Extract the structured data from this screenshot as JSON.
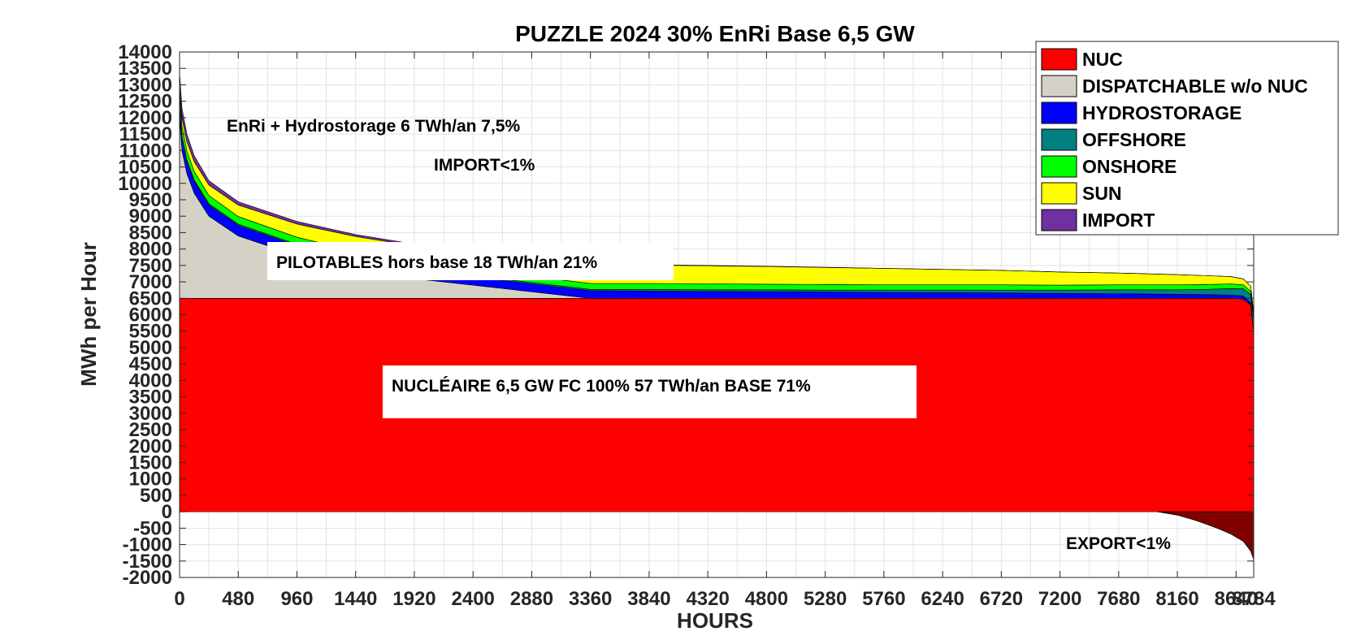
{
  "chart_data": {
    "type": "area",
    "title": "PUZZLE 2024 30% EnRi Base 6,5 GW",
    "xlabel": "HOURS",
    "ylabel": "MWh per Hour",
    "xlim": [
      0,
      8784
    ],
    "ylim": [
      -2000,
      14000
    ],
    "x_ticks": [
      "0",
      "480",
      "960",
      "1440",
      "1920",
      "2400",
      "2880",
      "3360",
      "3840",
      "4320",
      "4800",
      "5280",
      "5760",
      "6240",
      "6720",
      "7200",
      "7680",
      "8160",
      "8640",
      "8784"
    ],
    "y_ticks": [
      "14000",
      "13500",
      "13000",
      "12500",
      "12000",
      "11500",
      "11000",
      "10500",
      "10000",
      "9500",
      "9000",
      "8500",
      "8000",
      "7500",
      "7000",
      "6500",
      "6000",
      "5500",
      "5000",
      "4500",
      "4000",
      "3500",
      "3000",
      "2500",
      "2000",
      "1500",
      "1000",
      "500",
      "0",
      "-500",
      "-1000",
      "-1500",
      "-2000"
    ],
    "grid": true,
    "legend_position": "top-right",
    "x": [
      0,
      20,
      60,
      120,
      240,
      480,
      960,
      1440,
      1920,
      2400,
      2880,
      3360,
      3840,
      4320,
      4800,
      5280,
      5760,
      6240,
      6720,
      7200,
      7680,
      8160,
      8400,
      8600,
      8700,
      8760,
      8784
    ],
    "series": [
      {
        "name": "NUC",
        "color": "#ff0000",
        "values": [
          6500,
          6500,
          6500,
          6500,
          6500,
          6500,
          6500,
          6500,
          6500,
          6500,
          6500,
          6500,
          6500,
          6500,
          6500,
          6500,
          6500,
          6500,
          6500,
          6500,
          6500,
          6500,
          6500,
          6500,
          6480,
          6300,
          5500
        ]
      },
      {
        "name": "DISPATCHABLE w/o NUC",
        "color": "#d4d2c6",
        "values": [
          5500,
          4500,
          3800,
          3200,
          2500,
          1900,
          1300,
          900,
          600,
          400,
          200,
          0,
          0,
          0,
          0,
          0,
          0,
          0,
          0,
          0,
          0,
          0,
          0,
          0,
          0,
          0,
          0
        ]
      },
      {
        "name": "HYDROSTORAGE",
        "color": "#0000ff",
        "values": [
          400,
          400,
          380,
          360,
          340,
          320,
          300,
          280,
          260,
          250,
          240,
          230,
          220,
          210,
          200,
          190,
          180,
          170,
          160,
          150,
          140,
          120,
          110,
          100,
          90,
          60,
          40
        ]
      },
      {
        "name": "OFFSHORE",
        "color": "#008080",
        "values": [
          30,
          30,
          30,
          40,
          40,
          40,
          40,
          40,
          40,
          40,
          40,
          40,
          50,
          50,
          60,
          60,
          70,
          80,
          90,
          100,
          120,
          140,
          160,
          200,
          220,
          250,
          300
        ]
      },
      {
        "name": "ONSHORE",
        "color": "#00ff00",
        "values": [
          300,
          300,
          280,
          260,
          250,
          230,
          220,
          210,
          200,
          200,
          190,
          180,
          180,
          180,
          170,
          170,
          160,
          160,
          160,
          150,
          150,
          150,
          150,
          140,
          120,
          100,
          80
        ]
      },
      {
        "name": "SUN",
        "color": "#ffff00",
        "values": [
          200,
          250,
          280,
          300,
          320,
          350,
          400,
          450,
          500,
          520,
          540,
          550,
          560,
          550,
          540,
          520,
          500,
          470,
          440,
          400,
          360,
          310,
          270,
          220,
          180,
          150,
          120
        ]
      },
      {
        "name": "IMPORT",
        "color": "#7030a0",
        "values": [
          450,
          300,
          230,
          180,
          130,
          100,
          80,
          60,
          50,
          40,
          30,
          20,
          10,
          10,
          5,
          5,
          0,
          0,
          0,
          0,
          0,
          0,
          0,
          0,
          0,
          0,
          0
        ]
      }
    ],
    "export": {
      "color": "#800000",
      "x": [
        8000,
        8160,
        8300,
        8400,
        8500,
        8600,
        8700,
        8760,
        8784
      ],
      "values": [
        0,
        -100,
        -250,
        -380,
        -520,
        -680,
        -900,
        -1200,
        -1450
      ]
    },
    "annotations": [
      {
        "id": "enri",
        "text": "EnRi + Hydrostorage 6 TWh/an 7,5%"
      },
      {
        "id": "import",
        "text": "IMPORT<1%"
      },
      {
        "id": "pilotables",
        "text": "PILOTABLES hors base 18 TWh/an 21%"
      },
      {
        "id": "nucleaire",
        "text": "NUCLÉAIRE 6,5 GW FC 100% 57 TWh/an BASE 71%"
      },
      {
        "id": "export",
        "text": "EXPORT<1%"
      }
    ]
  }
}
